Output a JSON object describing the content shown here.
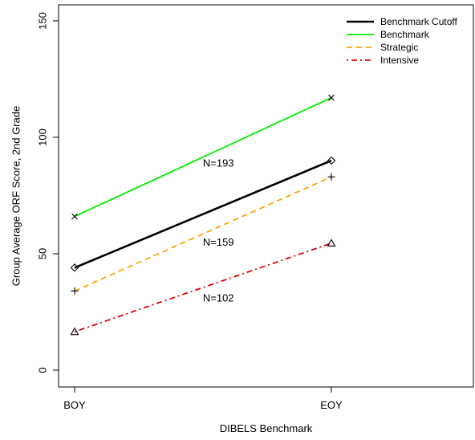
{
  "chart_data": {
    "type": "line",
    "title": "",
    "xlabel": "DIBELS Benchmark",
    "ylabel": "Group Average ORF Score, 2nd Grade",
    "categories": [
      "BOY",
      "EOY"
    ],
    "ylim": [
      0,
      150
    ],
    "yticks": [
      0,
      50,
      100,
      150
    ],
    "grid": false,
    "legend_position": "top-right",
    "series": [
      {
        "name": "Benchmark Cutoff",
        "values": [
          44,
          90
        ],
        "color": "#000000",
        "dash": "solid",
        "marker": "diamond"
      },
      {
        "name": "Benchmark",
        "values": [
          66,
          117
        ],
        "color": "#00ee00",
        "dash": "solid",
        "marker": "x"
      },
      {
        "name": "Strategic",
        "values": [
          34,
          83
        ],
        "color": "#ffa500",
        "dash": "dashed",
        "marker": "plus"
      },
      {
        "name": "Intensive",
        "values": [
          16.5,
          54.5
        ],
        "color": "#dd0000",
        "dash": "dotdash",
        "marker": "triangle"
      }
    ],
    "annotations": [
      {
        "text": "N=193",
        "x": 0.56,
        "y": 89
      },
      {
        "text": "N=159",
        "x": 0.56,
        "y": 55
      },
      {
        "text": "N=102",
        "x": 0.56,
        "y": 31
      }
    ]
  }
}
